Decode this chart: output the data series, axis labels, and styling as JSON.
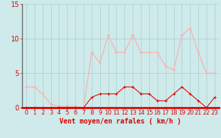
{
  "x": [
    0,
    1,
    2,
    3,
    4,
    5,
    6,
    7,
    8,
    9,
    10,
    11,
    12,
    13,
    14,
    15,
    16,
    17,
    18,
    19,
    20,
    21,
    22,
    23
  ],
  "mean_wind": [
    0,
    0,
    0,
    0,
    0,
    0,
    0,
    0,
    1.5,
    2,
    2,
    2,
    3,
    3,
    2,
    2,
    1,
    1,
    2,
    3,
    2,
    1,
    0,
    1.5
  ],
  "gusts": [
    3,
    3,
    2,
    0.5,
    0.2,
    0.2,
    0.2,
    0.0,
    8,
    6.5,
    10.5,
    8,
    8,
    10.5,
    8,
    8,
    8,
    6,
    5.5,
    10.5,
    11.5,
    8,
    5,
    5
  ],
  "mean_color": "#dd0000",
  "gust_color": "#ffaaaa",
  "bg_color": "#ceeaea",
  "grid_color": "#aacccc",
  "xlabel": "Vent moyen/en rafales ( km/h )",
  "ylim": [
    0,
    15
  ],
  "yticks": [
    0,
    5,
    10,
    15
  ],
  "xticks": [
    0,
    1,
    2,
    3,
    4,
    5,
    6,
    7,
    8,
    9,
    10,
    11,
    12,
    13,
    14,
    15,
    16,
    17,
    18,
    19,
    20,
    21,
    22,
    23
  ],
  "axis_label_fontsize": 7,
  "tick_fontsize": 6,
  "line_width": 0.8,
  "marker_size": 3
}
